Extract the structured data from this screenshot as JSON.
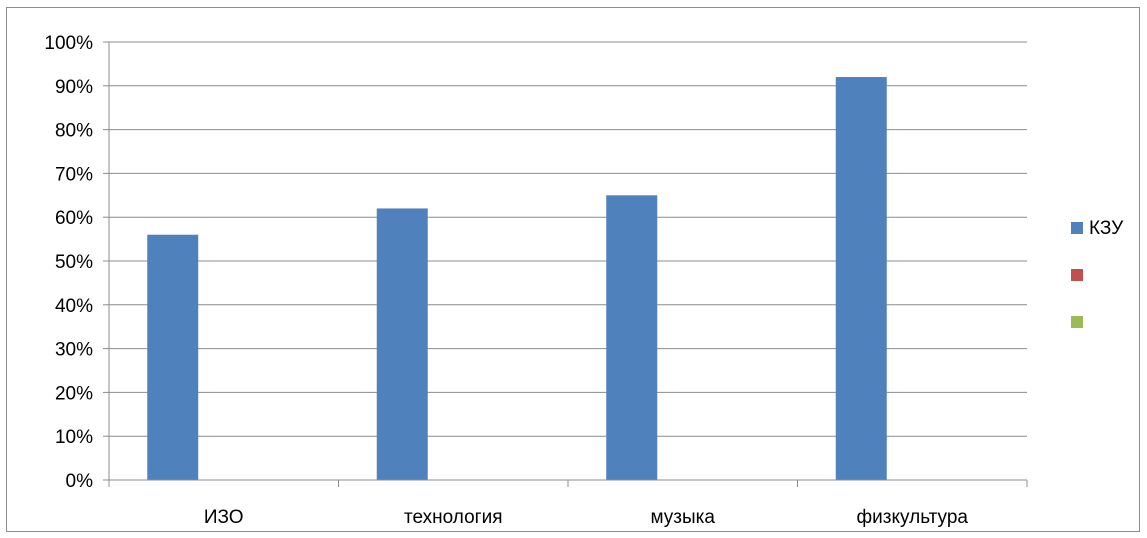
{
  "chart_data": {
    "type": "bar",
    "categories": [
      "ИЗО",
      "технология",
      "музыка",
      "физкультура"
    ],
    "series": [
      {
        "name": "КЗУ",
        "values": [
          56,
          62,
          65,
          92
        ],
        "color": "#4F81BD"
      },
      {
        "name": "",
        "values": [
          null,
          null,
          null,
          null
        ],
        "color": "#C0504D"
      },
      {
        "name": "",
        "values": [
          null,
          null,
          null,
          null
        ],
        "color": "#9BBB59"
      }
    ],
    "y_ticks": [
      "0%",
      "10%",
      "20%",
      "30%",
      "40%",
      "50%",
      "60%",
      "70%",
      "80%",
      "90%",
      "100%"
    ],
    "ylim": [
      0,
      100
    ],
    "y_unit": "%",
    "grid": true,
    "legend_position": "right"
  }
}
